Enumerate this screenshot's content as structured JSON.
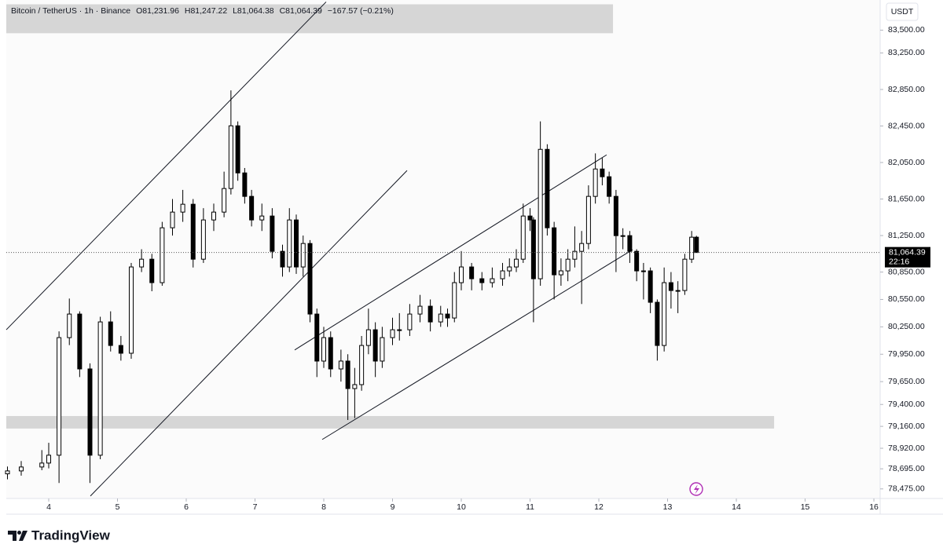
{
  "chart_data": {
    "type": "candlestick",
    "legend": {
      "symbol": "Bitcoin / TetherUS · 1h · Binance",
      "open": "O81,231.96",
      "high": "H81,247.22",
      "low": "L81,064.38",
      "close": "C81,064.39",
      "change": "−167.57 (−0.21%)"
    },
    "currency": "USDT",
    "last_price_label": "81,064.39",
    "countdown": "22:16",
    "brand": "TradingView",
    "up_color": "#ffffff",
    "down_color": "#000000",
    "x": [
      3.4,
      3.6,
      3.9,
      4.0,
      4.15,
      4.3,
      4.45,
      4.6,
      4.75,
      4.9,
      5.05,
      5.2,
      5.35,
      5.5,
      5.65,
      5.8,
      5.95,
      6.1,
      6.25,
      6.4,
      6.55,
      6.65,
      6.75,
      6.85,
      6.95,
      7.1,
      7.25,
      7.4,
      7.5,
      7.6,
      7.7,
      7.8,
      7.9,
      8.0,
      8.1,
      8.25,
      8.35,
      8.45,
      8.55,
      8.65,
      8.75,
      8.85,
      9.0,
      9.1,
      9.25,
      9.4,
      9.55,
      9.7,
      9.8,
      9.9,
      10.0,
      10.15,
      10.3,
      10.45,
      10.6,
      10.7,
      10.8,
      10.9,
      11.0,
      11.05,
      11.15,
      11.25,
      11.35,
      11.45,
      11.55,
      11.65,
      11.75,
      11.85,
      11.95,
      12.05,
      12.15,
      12.25,
      12.35,
      12.45,
      12.55,
      12.65,
      12.75,
      12.85,
      12.95,
      13.05,
      13.15,
      13.25,
      13.35,
      13.42
    ],
    "open": [
      78640,
      78672,
      78715,
      78758,
      78844,
      80132,
      80390,
      79789,
      78844,
      80304,
      80046,
      79961,
      80906,
      80991,
      80734,
      81335,
      81507,
      81593,
      80991,
      81421,
      81507,
      81765,
      82452,
      81936,
      81679,
      81421,
      81464,
      81077,
      80906,
      81421,
      80906,
      81163,
      80390,
      79875,
      80132,
      79789,
      79875,
      79574,
      79617,
      80046,
      80218,
      79875,
      80132,
      80218,
      80218,
      80390,
      80476,
      80304,
      80390,
      80347,
      80734,
      80906,
      80777,
      80734,
      80777,
      80863,
      80906,
      80991,
      81464,
      81421,
      80777,
      82194,
      81335,
      80820,
      80863,
      80991,
      81077,
      81163,
      81679,
      81979,
      81894,
      81679,
      81249,
      81249,
      81077,
      80863,
      80863,
      80519,
      80046,
      80734,
      80648,
      80648,
      80991,
      81231.96
    ],
    "high": [
      78720,
      78780,
      78900,
      78980,
      80200,
      80560,
      80420,
      79850,
      80360,
      80420,
      80150,
      80950,
      81100,
      81050,
      81400,
      81650,
      81750,
      81650,
      81550,
      81600,
      81950,
      82840,
      82500,
      81990,
      81750,
      81600,
      81550,
      81150,
      81550,
      81480,
      81250,
      81200,
      80450,
      80250,
      80200,
      80000,
      79950,
      79800,
      80150,
      80450,
      80300,
      80250,
      80350,
      80400,
      80500,
      80600,
      80550,
      80480,
      80450,
      80850,
      81080,
      80950,
      80850,
      80900,
      80950,
      81000,
      81100,
      81600,
      81550,
      81450,
      82500,
      82250,
      81400,
      81000,
      81100,
      81350,
      81300,
      81800,
      82150,
      82100,
      81950,
      81750,
      81330,
      81300,
      81100,
      80950,
      80900,
      80550,
      80900,
      80850,
      80750,
      81050,
      81300,
      81247.22
    ],
    "low": [
      78580,
      78620,
      78680,
      78700,
      78540,
      80050,
      79700,
      78540,
      78800,
      79980,
      79880,
      79900,
      80850,
      80640,
      80700,
      81250,
      81400,
      80900,
      80950,
      81300,
      81450,
      81700,
      81850,
      81600,
      81350,
      81300,
      81000,
      80800,
      80850,
      80830,
      80800,
      80300,
      79700,
      79800,
      79700,
      79650,
      79230,
      79250,
      79550,
      79950,
      79700,
      79800,
      80050,
      80100,
      80150,
      80300,
      80200,
      80250,
      80250,
      80300,
      80650,
      80650,
      80650,
      80680,
      80700,
      80800,
      80850,
      80950,
      81300,
      80300,
      80700,
      81250,
      80550,
      80700,
      80750,
      80900,
      80500,
      81100,
      81600,
      81800,
      81600,
      80850,
      81100,
      80950,
      80750,
      80550,
      80400,
      79880,
      79980,
      80450,
      80400,
      80600,
      80950,
      81064.38
    ],
    "close": [
      78672,
      78715,
      78758,
      78844,
      80132,
      80390,
      79789,
      78844,
      80304,
      80046,
      79961,
      80906,
      80991,
      80734,
      81335,
      81507,
      81593,
      80991,
      81421,
      81507,
      81765,
      82452,
      81936,
      81679,
      81421,
      81464,
      81077,
      80906,
      81421,
      80906,
      81163,
      80390,
      79875,
      80132,
      79789,
      79875,
      79574,
      79617,
      80046,
      80218,
      79875,
      80132,
      80218,
      80218,
      80390,
      80476,
      80304,
      80390,
      80347,
      80734,
      80906,
      80777,
      80734,
      80777,
      80863,
      80906,
      80991,
      81464,
      81421,
      80777,
      82194,
      81335,
      80820,
      80863,
      80991,
      81077,
      81163,
      81679,
      81979,
      81894,
      81679,
      81249,
      81249,
      81077,
      80863,
      80863,
      80519,
      80046,
      80734,
      80648,
      80648,
      80991,
      81231.96,
      81064.39
    ],
    "xlim": [
      3.383,
      16.091
    ],
    "ylim": [
      78370,
      83830
    ],
    "xticks": [
      4,
      5,
      6,
      7,
      8,
      9,
      10,
      11,
      12,
      13,
      14,
      15,
      16
    ],
    "yticks": [
      {
        "value": 83500,
        "label": "83,500.00"
      },
      {
        "value": 83250,
        "label": "83,250.00"
      },
      {
        "value": 82850,
        "label": "82,850.00"
      },
      {
        "value": 82450,
        "label": "82,450.00"
      },
      {
        "value": 82050,
        "label": "82,050.00"
      },
      {
        "value": 81650,
        "label": "81,650.00"
      },
      {
        "value": 81250,
        "label": "81,250.00"
      },
      {
        "value": 80850,
        "label": "80,850.00"
      },
      {
        "value": 80550,
        "label": "80,550.00"
      },
      {
        "value": 80250,
        "label": "80,250.00"
      },
      {
        "value": 79950,
        "label": "79,950.00"
      },
      {
        "value": 79650,
        "label": "79,650.00"
      },
      {
        "value": 79400,
        "label": "79,400.00"
      },
      {
        "value": 79160,
        "label": "79,160.00"
      },
      {
        "value": 78920,
        "label": "78,920.00"
      },
      {
        "value": 78695,
        "label": "78,695.00"
      },
      {
        "value": 78475,
        "label": "78,475.00"
      }
    ],
    "zones": [
      {
        "xlim": [
          3.383,
          12.206
        ],
        "ylim": [
          83466,
          83783
        ],
        "color": "#d6d6d6"
      },
      {
        "xlim": [
          3.383,
          14.549
        ],
        "ylim": [
          79136,
          79273
        ],
        "color": "#d6d6d6"
      }
    ],
    "trendlines": [
      {
        "x": [
          3.383,
          8.034
        ],
        "y": [
          80218,
          83809
        ]
      },
      {
        "x": [
          4.606,
          9.211
        ],
        "y": [
          78397,
          81962
        ]
      },
      {
        "x": [
          7.577,
          12.114
        ],
        "y": [
          79997,
          82134
        ]
      },
      {
        "x": [
          7.977,
          12.491
        ],
        "y": [
          79016,
          81095
        ]
      }
    ]
  }
}
